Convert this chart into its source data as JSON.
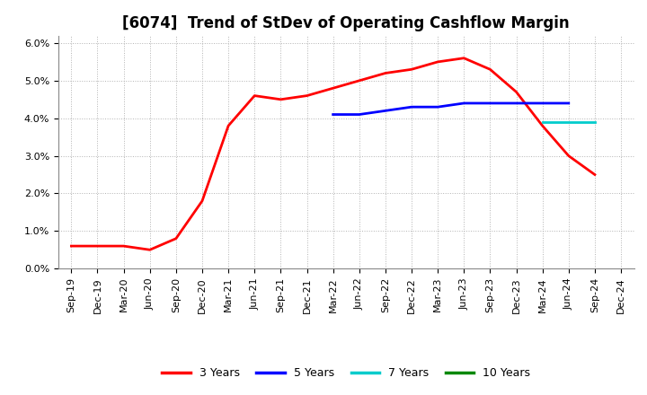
{
  "title": "[6074]  Trend of StDev of Operating Cashflow Margin",
  "background_color": "#ffffff",
  "plot_bg_color": "#ffffff",
  "grid_color": "#aaaaaa",
  "xlabels": [
    "Sep-19",
    "Dec-19",
    "Mar-20",
    "Jun-20",
    "Sep-20",
    "Dec-20",
    "Mar-21",
    "Jun-21",
    "Sep-21",
    "Dec-21",
    "Mar-22",
    "Jun-22",
    "Sep-22",
    "Dec-22",
    "Mar-23",
    "Jun-23",
    "Sep-23",
    "Dec-23",
    "Mar-24",
    "Jun-24",
    "Sep-24",
    "Dec-24"
  ],
  "series": {
    "3 Years": {
      "color": "#ff0000",
      "linewidth": 2.0,
      "values": [
        0.006,
        0.006,
        0.006,
        0.005,
        0.008,
        0.018,
        0.038,
        0.046,
        0.045,
        0.046,
        0.048,
        0.05,
        0.052,
        0.053,
        0.055,
        0.056,
        0.053,
        0.047,
        0.038,
        0.03,
        0.025,
        null
      ]
    },
    "5 Years": {
      "color": "#0000ff",
      "linewidth": 2.0,
      "values": [
        null,
        null,
        null,
        null,
        null,
        null,
        null,
        null,
        null,
        null,
        0.041,
        0.041,
        0.042,
        0.043,
        0.043,
        0.044,
        0.044,
        0.044,
        0.044,
        0.044,
        null,
        null
      ]
    },
    "7 Years": {
      "color": "#00cccc",
      "linewidth": 2.0,
      "values": [
        null,
        null,
        null,
        null,
        null,
        null,
        null,
        null,
        null,
        null,
        null,
        null,
        null,
        null,
        null,
        null,
        null,
        null,
        0.039,
        0.039,
        0.039,
        null
      ]
    },
    "10 Years": {
      "color": "#008800",
      "linewidth": 2.0,
      "values": [
        null,
        null,
        null,
        null,
        null,
        null,
        null,
        null,
        null,
        null,
        null,
        null,
        null,
        null,
        null,
        null,
        null,
        null,
        null,
        null,
        null,
        null
      ]
    }
  },
  "ylim": [
    0.0,
    0.062
  ],
  "yticks": [
    0.0,
    0.01,
    0.02,
    0.03,
    0.04,
    0.05,
    0.06
  ],
  "legend_items": [
    "3 Years",
    "5 Years",
    "7 Years",
    "10 Years"
  ],
  "legend_colors": [
    "#ff0000",
    "#0000ff",
    "#00cccc",
    "#008800"
  ],
  "title_fontsize": 12,
  "tick_fontsize": 8,
  "legend_fontsize": 9
}
